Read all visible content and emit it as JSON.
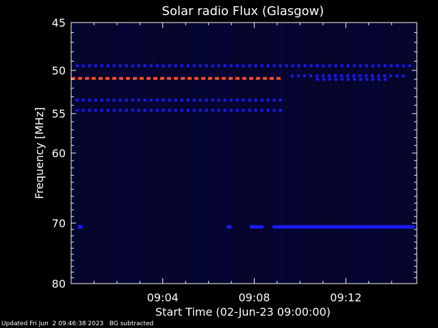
{
  "chart_data": {
    "type": "heatmap",
    "title": "Solar radio Flux (Glasgow)",
    "xlabel": "Start Time (02-Jun-23 09:00:00)",
    "ylabel": "Frequency [MHz]",
    "x_unit": "minutes after 09:00:00",
    "xlim": [
      0,
      15.1
    ],
    "ylim": [
      45,
      80
    ],
    "y_scale": "log",
    "y_inverted": true,
    "x_ticks": [
      {
        "value": 4,
        "label": "09:04"
      },
      {
        "value": 8,
        "label": "09:08"
      },
      {
        "value": 12,
        "label": "09:12"
      }
    ],
    "y_ticks": [
      {
        "value": 45,
        "label": "45"
      },
      {
        "value": 50,
        "label": "50"
      },
      {
        "value": 55,
        "label": "55"
      },
      {
        "value": 60,
        "label": "60"
      },
      {
        "value": 70,
        "label": "70"
      },
      {
        "value": 80,
        "label": "80"
      }
    ],
    "colors": {
      "background": "#000000",
      "plot_background": "#05052a",
      "low": "#0a0a60",
      "mid": "#1a1aff",
      "high": "#ff5020"
    },
    "emission_lines": [
      {
        "freq": 49.5,
        "x_start": 0.2,
        "x_end": 15.0,
        "intensity": "mid",
        "pattern": "dashed"
      },
      {
        "freq": 50.6,
        "x_start": 9.6,
        "x_end": 14.7,
        "intensity": "mid",
        "pattern": "dashed"
      },
      {
        "freq": 50.9,
        "x_start": 0.0,
        "x_end": 9.2,
        "intensity": "high",
        "pattern": "dashed"
      },
      {
        "freq": 51.0,
        "x_start": 10.7,
        "x_end": 13.8,
        "intensity": "mid",
        "pattern": "dashed"
      },
      {
        "freq": 53.4,
        "x_start": 0.2,
        "x_end": 9.2,
        "intensity": "mid",
        "pattern": "dashed"
      },
      {
        "freq": 54.6,
        "x_start": 0.2,
        "x_end": 9.2,
        "intensity": "mid",
        "pattern": "dashed"
      },
      {
        "freq": 70.6,
        "x_start": 0.3,
        "x_end": 0.5,
        "intensity": "mid",
        "pattern": "solid"
      },
      {
        "freq": 70.6,
        "x_start": 6.8,
        "x_end": 7.0,
        "intensity": "mid",
        "pattern": "solid"
      },
      {
        "freq": 70.6,
        "x_start": 7.8,
        "x_end": 8.4,
        "intensity": "mid",
        "pattern": "solid"
      },
      {
        "freq": 70.6,
        "x_start": 8.8,
        "x_end": 15.0,
        "intensity": "mid",
        "pattern": "solid"
      }
    ]
  },
  "footer": "Updated Fri Jun  2 09:46:38 2023   BG subtracted"
}
